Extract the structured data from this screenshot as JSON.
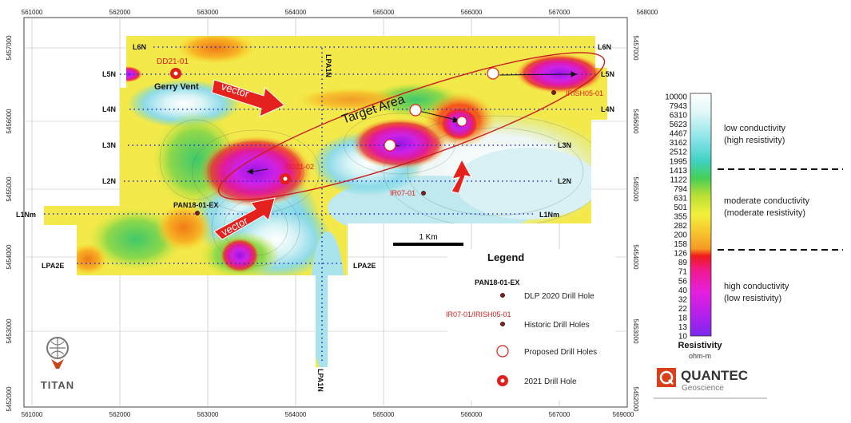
{
  "map": {
    "x_ticks": [
      "561000",
      "562000",
      "563000",
      "564000",
      "565000",
      "566000",
      "567000",
      "568000",
      "569000"
    ],
    "y_ticks": [
      "5457000",
      "5456000",
      "5455000",
      "5454000",
      "5453000",
      "5452000"
    ],
    "lines": {
      "L6N": "L6N",
      "L5N": "L5N",
      "L4N": "L4N",
      "L3N": "L3N",
      "L2N": "L2N",
      "L1Nm": "L1Nm",
      "LPA1N": "LPA1N",
      "LPA2E": "LPA2E"
    },
    "labels": {
      "dd21_01": "DD21-01",
      "gerry_vent": "Gerry Vent",
      "dd21_02": "DD21-02",
      "pan18": "PAN18-01-EX",
      "irish05": "IRISH05-01",
      "ir07": "IR07-01",
      "target_area": "Target Area",
      "vector": "vector",
      "scale_bar": "1 Km"
    }
  },
  "legend": {
    "title": "Legend",
    "dlp_sample": "PAN18-01-EX",
    "dlp_label": "DLP 2020 Drill Hole",
    "historic_sample": "IR07-01/IRISH05-01",
    "historic_label": "Historic Drill Holes",
    "proposed_label": "Proposed Drill Holes",
    "hole2021_label": "2021 Drill Hole"
  },
  "color_scale": {
    "values": [
      "10000",
      "7943",
      "6310",
      "5623",
      "4467",
      "3162",
      "2512",
      "1995",
      "1413",
      "1122",
      "794",
      "631",
      "501",
      "355",
      "282",
      "200",
      "158",
      "126",
      "89",
      "71",
      "56",
      "40",
      "32",
      "22",
      "18",
      "13",
      "10"
    ],
    "title": "Resistivity",
    "unit": "ohm-m",
    "low": "low conductivity",
    "low_sub": "(high resistivity)",
    "moderate": "moderate conductivity",
    "moderate_sub": "(moderate resistivity)",
    "high": "high conductivity",
    "high_sub": "(low resistivity)"
  },
  "logos": {
    "titan": "TITAN",
    "quantec": "QUANTEC",
    "quantec_sub": "Geoscience"
  },
  "colors": {
    "proposed": "#e0201b",
    "arrow": "#e5211d",
    "line": "#1a2fd0",
    "target": "#c81e1e"
  }
}
